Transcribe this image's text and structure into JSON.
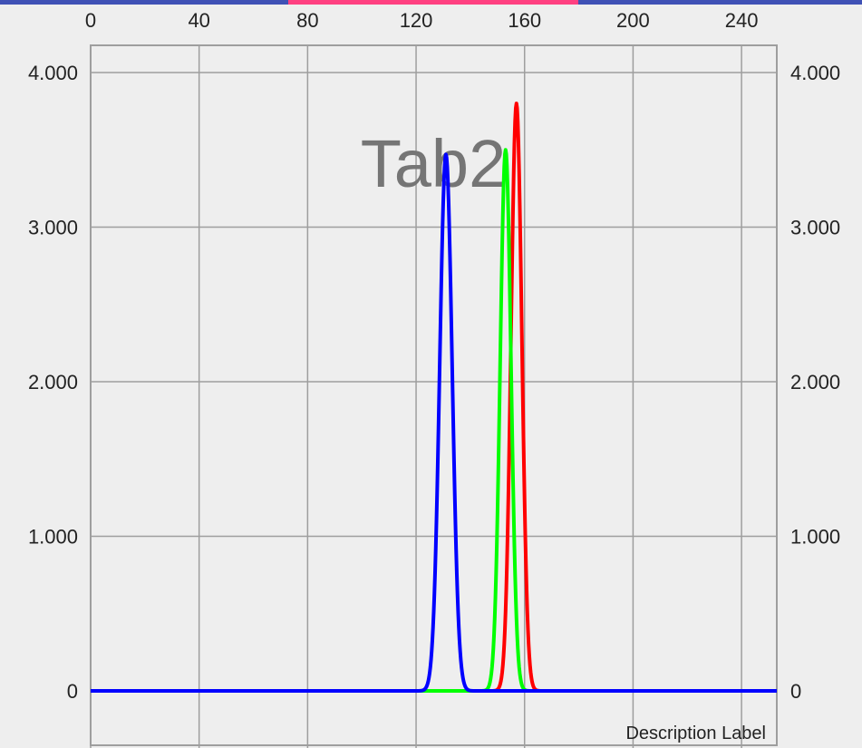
{
  "tabs": {
    "selected": "Tab2"
  },
  "colors": {
    "tab_bar": "#3f51b5",
    "tab_indicator": "#ff4081",
    "grid": "#9e9e9e",
    "background": "#eeeeee"
  },
  "chart_data": {
    "type": "line",
    "title": "",
    "center_label": "Tab2",
    "description": "Description Label",
    "x_ticks": [
      "0",
      "40",
      "80",
      "120",
      "160",
      "200",
      "240"
    ],
    "y_ticks_left": [
      "0",
      "1.000",
      "2.000",
      "3.000",
      "4.000"
    ],
    "y_ticks_right": [
      "0",
      "1.000",
      "2.000",
      "3.000",
      "4.000"
    ],
    "xlim": [
      0,
      253
    ],
    "ylim": [
      0,
      4000
    ],
    "grid": true,
    "x_axis_position": "top",
    "legend": "none",
    "series": [
      {
        "color": "#ff0000",
        "peak_x": 157,
        "peak_y": 3800,
        "sigma": 2.0
      },
      {
        "color": "#00ff00",
        "peak_x": 153,
        "peak_y": 3500,
        "sigma": 2.0
      },
      {
        "color": "#0000ff",
        "peak_x": 131,
        "peak_y": 3470,
        "sigma": 2.3
      }
    ]
  }
}
